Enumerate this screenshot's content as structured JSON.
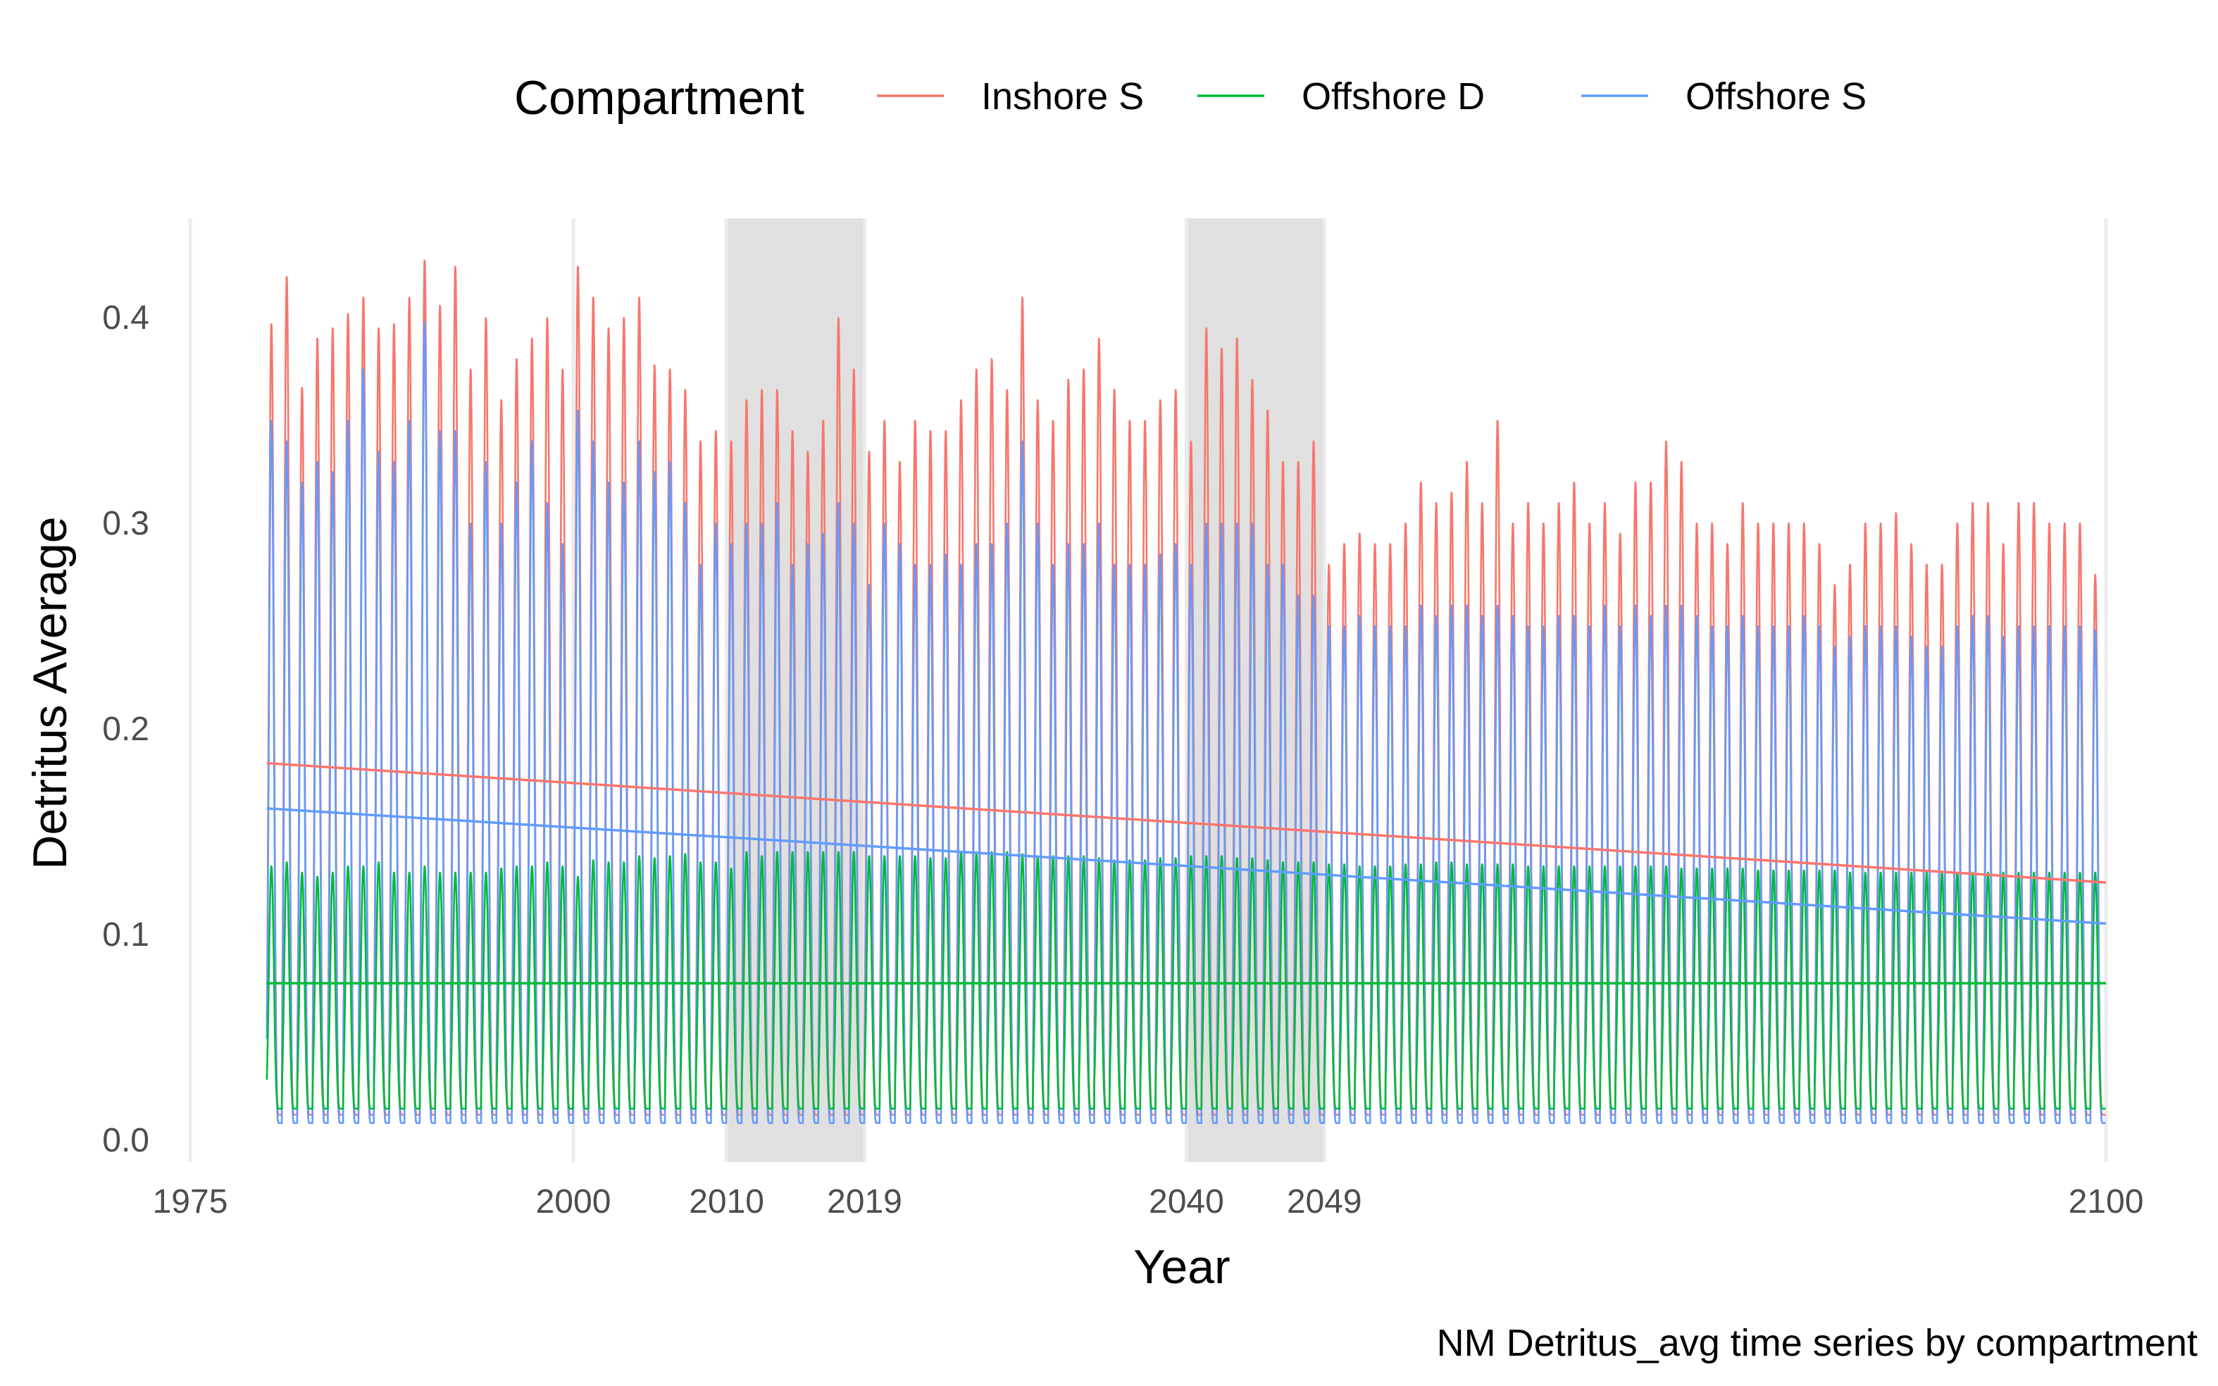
{
  "chart_data": {
    "type": "line",
    "title": "",
    "caption": "NM Detritus_avg time series by compartment",
    "xlabel": "Year",
    "ylabel": "Detritus Average",
    "xlim": [
      1975,
      2100
    ],
    "ylim": [
      0,
      0.43
    ],
    "x_ticks": [
      1975,
      2000,
      2010,
      2019,
      2040,
      2049,
      2100
    ],
    "y_ticks": [
      0.0,
      0.1,
      0.2,
      0.3,
      0.4
    ],
    "y_tick_labels": [
      "0.0",
      "0.1",
      "0.2",
      "0.3",
      "0.4"
    ],
    "shaded_periods": [
      [
        2010,
        2019
      ],
      [
        2040,
        2049
      ]
    ],
    "grid": true,
    "legend": {
      "title": "Compartment",
      "position": "top"
    },
    "time_range": [
      1980,
      2100
    ],
    "series": [
      {
        "name": "Inshore S",
        "color": "#F8766D",
        "annual_peak_yearly": [
          0.397,
          0.42,
          0.366,
          0.39,
          0.395,
          0.402,
          0.41,
          0.395,
          0.397,
          0.41,
          0.428,
          0.406,
          0.425,
          0.375,
          0.4,
          0.36,
          0.38,
          0.39,
          0.4,
          0.375,
          0.425,
          0.41,
          0.395,
          0.4,
          0.41,
          0.377,
          0.375,
          0.365,
          0.34,
          0.345,
          0.34,
          0.36,
          0.365,
          0.365,
          0.345,
          0.335,
          0.35,
          0.4,
          0.375,
          0.335,
          0.35,
          0.33,
          0.35,
          0.345,
          0.345,
          0.36,
          0.375,
          0.38,
          0.365,
          0.41,
          0.36,
          0.35,
          0.37,
          0.375,
          0.39,
          0.365,
          0.35,
          0.35,
          0.36,
          0.365,
          0.34,
          0.395,
          0.385,
          0.39,
          0.37,
          0.355,
          0.33,
          0.33,
          0.34,
          0.28,
          0.29,
          0.295,
          0.29,
          0.29,
          0.3,
          0.32,
          0.31,
          0.315,
          0.33,
          0.31,
          0.35,
          0.3,
          0.31,
          0.3,
          0.31,
          0.32,
          0.3,
          0.31,
          0.295,
          0.32,
          0.32,
          0.34,
          0.33,
          0.3,
          0.3,
          0.29,
          0.31,
          0.3,
          0.3,
          0.3,
          0.3,
          0.29,
          0.27,
          0.28,
          0.3,
          0.3,
          0.305,
          0.29,
          0.28,
          0.28,
          0.3,
          0.31,
          0.31,
          0.29,
          0.31,
          0.31,
          0.3,
          0.3,
          0.3,
          0.275
        ],
        "annual_min": 0.012,
        "trend": [
          [
            1980,
            0.183
          ],
          [
            2100,
            0.125
          ]
        ]
      },
      {
        "name": "Offshore D",
        "color": "#00BA38",
        "annual_peak_yearly": [
          0.133,
          0.135,
          0.13,
          0.128,
          0.13,
          0.133,
          0.133,
          0.135,
          0.13,
          0.13,
          0.133,
          0.13,
          0.13,
          0.13,
          0.13,
          0.132,
          0.133,
          0.133,
          0.135,
          0.133,
          0.128,
          0.136,
          0.135,
          0.135,
          0.138,
          0.137,
          0.138,
          0.139,
          0.135,
          0.135,
          0.132,
          0.14,
          0.138,
          0.14,
          0.14,
          0.14,
          0.14,
          0.14,
          0.14,
          0.138,
          0.138,
          0.138,
          0.138,
          0.137,
          0.137,
          0.14,
          0.14,
          0.14,
          0.14,
          0.139,
          0.138,
          0.138,
          0.138,
          0.138,
          0.137,
          0.136,
          0.136,
          0.136,
          0.137,
          0.137,
          0.138,
          0.138,
          0.138,
          0.137,
          0.137,
          0.136,
          0.135,
          0.135,
          0.135,
          0.134,
          0.134,
          0.133,
          0.133,
          0.133,
          0.134,
          0.134,
          0.135,
          0.135,
          0.134,
          0.134,
          0.134,
          0.134,
          0.133,
          0.133,
          0.133,
          0.133,
          0.133,
          0.133,
          0.133,
          0.133,
          0.133,
          0.133,
          0.132,
          0.132,
          0.132,
          0.132,
          0.132,
          0.131,
          0.131,
          0.131,
          0.131,
          0.131,
          0.131,
          0.13,
          0.13,
          0.13,
          0.13,
          0.13,
          0.13,
          0.13,
          0.13,
          0.13,
          0.13,
          0.13,
          0.13,
          0.13,
          0.13,
          0.13,
          0.13,
          0.13
        ],
        "annual_min": 0.015,
        "trend": [
          [
            1980,
            0.076
          ],
          [
            2100,
            0.076
          ]
        ]
      },
      {
        "name": "Offshore S",
        "color": "#619CFF",
        "annual_peak_yearly": [
          0.35,
          0.34,
          0.32,
          0.33,
          0.325,
          0.35,
          0.375,
          0.335,
          0.33,
          0.35,
          0.398,
          0.345,
          0.345,
          0.3,
          0.33,
          0.3,
          0.32,
          0.34,
          0.31,
          0.29,
          0.355,
          0.34,
          0.32,
          0.32,
          0.34,
          0.325,
          0.33,
          0.31,
          0.28,
          0.3,
          0.29,
          0.3,
          0.3,
          0.31,
          0.28,
          0.29,
          0.295,
          0.31,
          0.3,
          0.27,
          0.3,
          0.29,
          0.28,
          0.28,
          0.285,
          0.28,
          0.29,
          0.29,
          0.3,
          0.34,
          0.3,
          0.28,
          0.29,
          0.29,
          0.3,
          0.28,
          0.28,
          0.28,
          0.285,
          0.29,
          0.28,
          0.3,
          0.3,
          0.3,
          0.3,
          0.28,
          0.28,
          0.265,
          0.265,
          0.25,
          0.25,
          0.255,
          0.25,
          0.25,
          0.25,
          0.26,
          0.255,
          0.26,
          0.26,
          0.255,
          0.26,
          0.255,
          0.25,
          0.25,
          0.255,
          0.255,
          0.25,
          0.26,
          0.25,
          0.26,
          0.255,
          0.26,
          0.26,
          0.255,
          0.25,
          0.25,
          0.255,
          0.25,
          0.25,
          0.25,
          0.255,
          0.25,
          0.24,
          0.245,
          0.25,
          0.25,
          0.25,
          0.245,
          0.24,
          0.24,
          0.25,
          0.255,
          0.255,
          0.245,
          0.25,
          0.25,
          0.25,
          0.25,
          0.25,
          0.248
        ],
        "annual_min": 0.008,
        "trend": [
          [
            1980,
            0.161
          ],
          [
            2100,
            0.105
          ]
        ]
      }
    ]
  }
}
